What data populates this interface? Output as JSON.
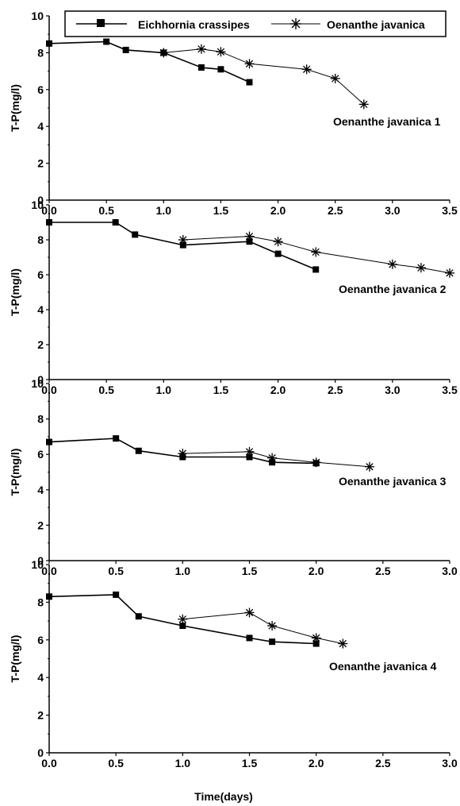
{
  "chart_data": {
    "type": "line",
    "xlabel": "Time(days)",
    "legend": {
      "placement": "top",
      "entries": [
        {
          "name": "Eichhornia crassipes",
          "marker": "square"
        },
        {
          "name": "Oenanthe javanica",
          "marker": "star"
        }
      ]
    },
    "panels": [
      {
        "label": "Oenanthe javanica 1",
        "ylabel": "T-P(mg/l)",
        "xlim": [
          0,
          3.5
        ],
        "ylim": [
          0,
          10
        ],
        "xticks": [
          "0.0",
          "0.5",
          "1.0",
          "1.5",
          "2.0",
          "2.5",
          "3.0",
          "3.5"
        ],
        "yticks": [
          "0",
          "2",
          "4",
          "6",
          "8",
          "10"
        ],
        "series": [
          {
            "name": "Eichhornia crassipes",
            "x": [
              0,
              0.5,
              0.67,
              1.0,
              1.33,
              1.5,
              1.75
            ],
            "y": [
              8.5,
              8.6,
              8.15,
              8.0,
              7.2,
              7.1,
              6.4
            ]
          },
          {
            "name": "Oenanthe javanica",
            "x": [
              1.0,
              1.33,
              1.5,
              1.75,
              2.25,
              2.5,
              2.75
            ],
            "y": [
              8.0,
              8.2,
              8.05,
              7.4,
              7.1,
              6.6,
              5.2
            ]
          }
        ]
      },
      {
        "label": "Oenanthe javanica 2",
        "ylabel": "T-P(mg/l)",
        "xlim": [
          0,
          3.5
        ],
        "ylim": [
          0,
          10
        ],
        "xticks": [
          "0.0",
          "0.5",
          "1.0",
          "1.5",
          "2.0",
          "2.5",
          "3.0",
          "3.5"
        ],
        "yticks": [
          "0",
          "2",
          "4",
          "6",
          "8",
          "10"
        ],
        "series": [
          {
            "name": "Eichhornia crassipes",
            "x": [
              0,
              0.58,
              0.75,
              1.17,
              1.75,
              2.0,
              2.33
            ],
            "y": [
              9.0,
              9.0,
              8.3,
              7.7,
              7.9,
              7.2,
              6.3
            ]
          },
          {
            "name": "Oenanthe javanica",
            "x": [
              1.17,
              1.75,
              2.0,
              2.33,
              3.0,
              3.25,
              3.5
            ],
            "y": [
              8.0,
              8.2,
              7.9,
              7.3,
              6.6,
              6.4,
              6.1
            ]
          }
        ]
      },
      {
        "label": "Oenanthe javanica 3",
        "ylabel": "T-P(mg/l)",
        "xlim": [
          0,
          3.0
        ],
        "ylim": [
          0,
          10
        ],
        "xticks": [
          "0.0",
          "0.5",
          "1.0",
          "1.5",
          "2.0",
          "2.5",
          "3.0"
        ],
        "yticks": [
          "0",
          "2",
          "4",
          "6",
          "8",
          "10"
        ],
        "series": [
          {
            "name": "Eichhornia crassipes",
            "x": [
              0,
              0.5,
              0.67,
              1.0,
              1.5,
              1.67,
              2.0
            ],
            "y": [
              6.7,
              6.9,
              6.2,
              5.85,
              5.85,
              5.55,
              5.5
            ]
          },
          {
            "name": "Oenanthe javanica",
            "x": [
              1.0,
              1.5,
              1.67,
              2.0,
              2.4
            ],
            "y": [
              6.05,
              6.15,
              5.8,
              5.55,
              5.3
            ]
          }
        ]
      },
      {
        "label": "Oenanthe javanica 4",
        "ylabel": "T-P(mg/l)",
        "xlim": [
          0,
          3.0
        ],
        "ylim": [
          0,
          10
        ],
        "xticks": [
          "0.0",
          "0.5",
          "1.0",
          "1.5",
          "2.0",
          "2.5",
          "3.0"
        ],
        "yticks": [
          "0",
          "2",
          "4",
          "6",
          "8",
          "10"
        ],
        "series": [
          {
            "name": "Eichhornia crassipes",
            "x": [
              0,
              0.5,
              0.67,
              1.0,
              1.5,
              1.67,
              2.0
            ],
            "y": [
              8.3,
              8.4,
              7.25,
              6.75,
              6.1,
              5.9,
              5.8
            ]
          },
          {
            "name": "Oenanthe javanica",
            "x": [
              1.0,
              1.5,
              1.67,
              2.0,
              2.2
            ],
            "y": [
              7.1,
              7.45,
              6.75,
              6.1,
              5.8
            ]
          }
        ]
      }
    ]
  }
}
